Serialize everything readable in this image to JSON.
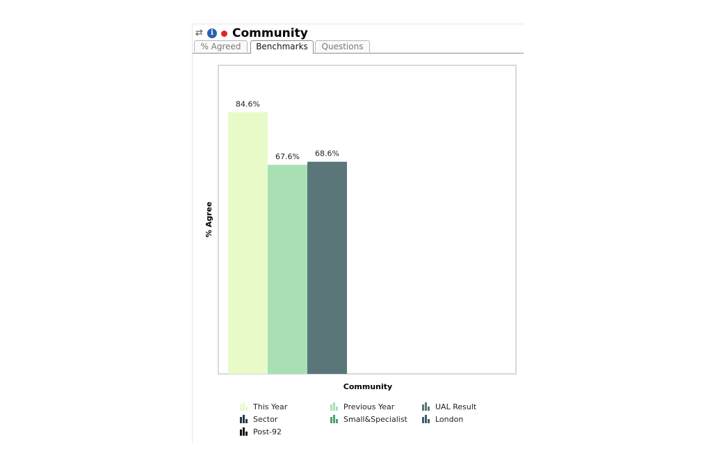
{
  "header": {
    "title": "Community",
    "refresh_icon": "refresh-icon",
    "info_icon": "info-icon",
    "status_dot_color": "#e02424"
  },
  "tabs": [
    {
      "label": "% Agreed",
      "active": false
    },
    {
      "label": "Benchmarks",
      "active": true
    },
    {
      "label": "Questions",
      "active": false
    }
  ],
  "chart_data": {
    "type": "bar",
    "categories": [
      "Community"
    ],
    "series": [
      {
        "name": "This Year",
        "values": [
          84.6
        ],
        "color": "#e8fac8"
      },
      {
        "name": "Previous Year",
        "values": [
          67.6
        ],
        "color": "#a8e0b4"
      },
      {
        "name": "UAL Result",
        "values": [
          68.6
        ],
        "color": "#5a7678"
      }
    ],
    "data_labels": [
      "84.6%",
      "67.6%",
      "68.6%"
    ],
    "xlabel": "Community",
    "ylabel": "% Agree",
    "ylim": [
      0,
      100
    ],
    "grid": false,
    "legend_position": "bottom"
  },
  "legend": [
    {
      "label": "This Year",
      "color": "#e8fac8"
    },
    {
      "label": "Previous Year",
      "color": "#a8e0b4"
    },
    {
      "label": "UAL Result",
      "color": "#5a7678"
    },
    {
      "label": "Sector",
      "color": "#22364a"
    },
    {
      "label": "Small&Specialist",
      "color": "#4aa36a"
    },
    {
      "label": "London",
      "color": "#3f5e6e"
    },
    {
      "label": "Post-92",
      "color": "#111111"
    }
  ]
}
